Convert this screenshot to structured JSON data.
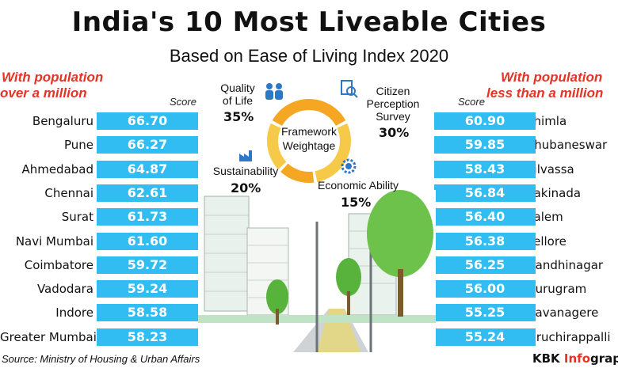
{
  "colors": {
    "bar": "#32bdf2",
    "accent_red": "#e53324",
    "donut_orange": "#f5a623",
    "donut_yellow": "#f7c948",
    "icon_blue": "#2d77c4"
  },
  "chart_data": {
    "type": "table",
    "title": "India's 10 Most Liveable Cities",
    "subtitle": "Based on Ease of Living Index 2020",
    "score_label": "Score",
    "left": {
      "label_line1": "With population",
      "label_line2": "over a million",
      "categories": [
        "Bengaluru",
        "Pune",
        "Ahmedabad",
        "Chennai",
        "Surat",
        "Navi Mumbai",
        "Coimbatore",
        "Vadodara",
        "Indore",
        "Greater Mumbai"
      ],
      "values": [
        "66.70",
        "66.27",
        "64.87",
        "62.61",
        "61.73",
        "61.60",
        "59.72",
        "59.24",
        "58.58",
        "58.23"
      ]
    },
    "right": {
      "label_line1": "With population",
      "label_line2": "less than a million",
      "categories": [
        "Shimla",
        "Bhubaneswar",
        "Silvassa",
        "Kakinada",
        "Salem",
        "Vellore",
        "Gandhinagar",
        "Gurugram",
        "Davanagere",
        "Tiruchirappalli"
      ],
      "values": [
        "60.90",
        "59.85",
        "58.43",
        "56.84",
        "56.40",
        "56.38",
        "56.25",
        "56.00",
        "55.25",
        "55.24"
      ]
    },
    "framework": {
      "center_line1": "Framework",
      "center_line2": "Weightage",
      "items": [
        {
          "name_line1": "Quality",
          "name_line2": "of Life",
          "pct": "35%",
          "value": 35
        },
        {
          "name_line1": "Citizen",
          "name_line2": "Perception",
          "name_line3": "Survey",
          "pct": "30%",
          "value": 30
        },
        {
          "name_line1": "Economic Ability",
          "pct": "15%",
          "value": 15
        },
        {
          "name_line1": "Sustainability",
          "pct": "20%",
          "value": 20
        }
      ]
    },
    "source": "Source: Ministry of Housing & Urban Affairs",
    "credit_prefix": "KBK ",
    "credit_accent": "Info",
    "credit_suffix": "graphics"
  }
}
